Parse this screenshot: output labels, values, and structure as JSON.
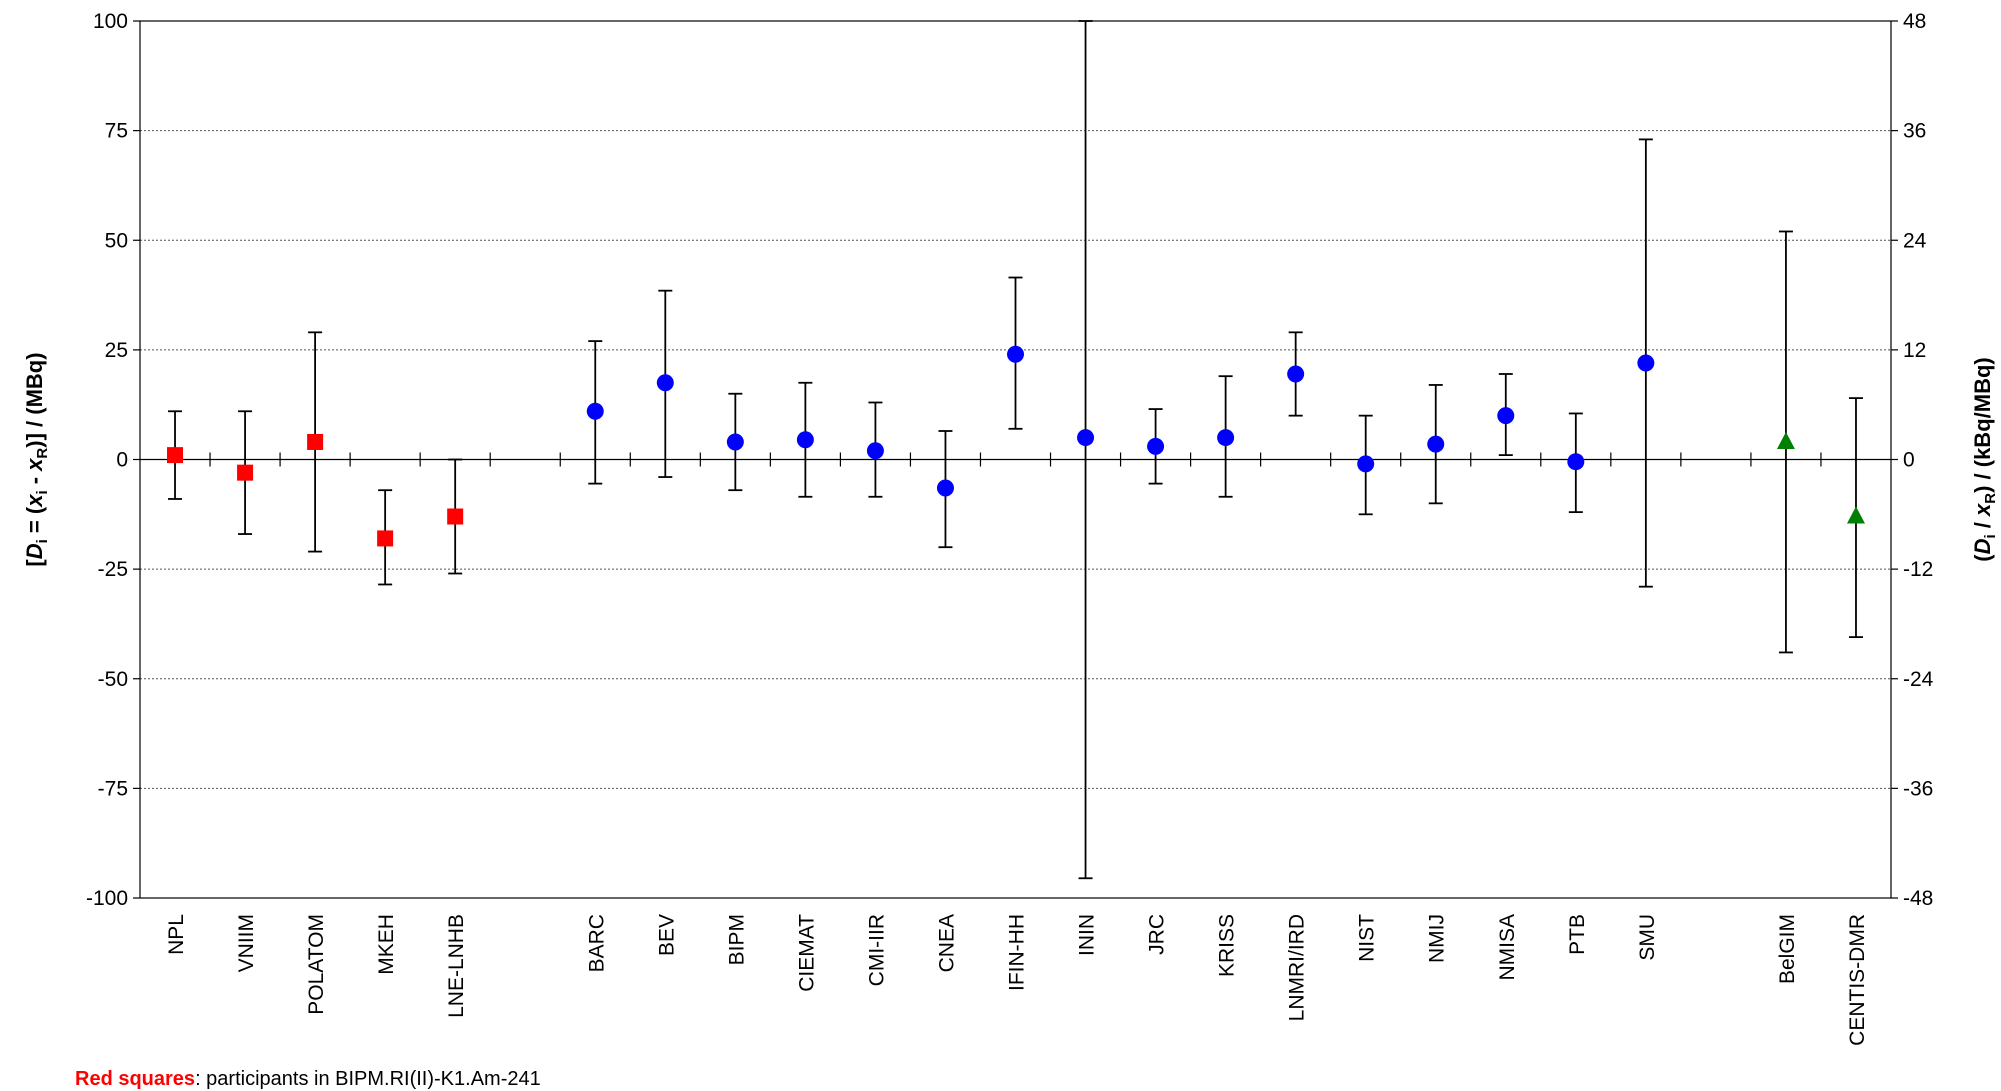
{
  "chart_data": {
    "type": "scatter",
    "title": "",
    "y_left": {
      "ylim": [
        -100,
        100
      ],
      "ticks": [
        "100",
        "75",
        "50",
        "25",
        "0",
        "-25",
        "-50",
        "-75",
        "-100"
      ],
      "label_parts": [
        "[",
        "D",
        "i",
        " = (",
        "x",
        "i",
        " - ",
        "x",
        "R",
        ")] / (MBq)"
      ]
    },
    "y_right": {
      "ylim": [
        -48,
        48
      ],
      "ticks": [
        "48",
        "36",
        "24",
        "12",
        "0",
        "-12",
        "-24",
        "-36",
        "-48"
      ],
      "label_parts": [
        "(",
        "D",
        "i",
        " / ",
        "x",
        "R",
        ") / (kBq/MBq)"
      ]
    },
    "grid": true,
    "categories": [
      "NPL",
      "VNIIM",
      "POLATOM",
      "MKEH",
      "LNE-LNHB",
      "",
      "BARC",
      "BEV",
      "BIPM",
      "CIEMAT",
      "CMI-IIR",
      "CNEA",
      "IFIN-HH",
      "ININ",
      "JRC",
      "KRISS",
      "LNMRI/IRD",
      "NIST",
      "NMIJ",
      "NMISA",
      "PTB",
      "SMU",
      "",
      "BelGIM",
      "CENTIS-DMR"
    ],
    "series": [
      {
        "marker": "square",
        "color": "#ff0000",
        "points": [
          {
            "category": "NPL",
            "y": 1,
            "low": -9,
            "high": 11
          },
          {
            "category": "VNIIM",
            "y": -3,
            "low": -17,
            "high": 11
          },
          {
            "category": "POLATOM",
            "y": 4,
            "low": -21,
            "high": 29
          },
          {
            "category": "MKEH",
            "y": -18,
            "low": -28.5,
            "high": -7
          },
          {
            "category": "LNE-LNHB",
            "y": -13,
            "low": -26,
            "high": 0
          }
        ]
      },
      {
        "marker": "circle",
        "color": "#0000ff",
        "points": [
          {
            "category": "BARC",
            "y": 11,
            "low": -5.5,
            "high": 27
          },
          {
            "category": "BEV",
            "y": 17.5,
            "low": -4,
            "high": 38.5
          },
          {
            "category": "BIPM",
            "y": 4,
            "low": -7,
            "high": 15
          },
          {
            "category": "CIEMAT",
            "y": 4.5,
            "low": -8.5,
            "high": 17.5
          },
          {
            "category": "CMI-IIR",
            "y": 2,
            "low": -8.5,
            "high": 13
          },
          {
            "category": "CNEA",
            "y": -6.5,
            "low": -20,
            "high": 6.5
          },
          {
            "category": "IFIN-HH",
            "y": 24,
            "low": 7,
            "high": 41.5
          },
          {
            "category": "ININ",
            "y": 5,
            "low": -95.5,
            "high": 100
          },
          {
            "category": "JRC",
            "y": 3,
            "low": -5.5,
            "high": 11.5
          },
          {
            "category": "KRISS",
            "y": 5,
            "low": -8.5,
            "high": 19
          },
          {
            "category": "LNMRI/IRD",
            "y": 19.5,
            "low": 10,
            "high": 29
          },
          {
            "category": "NIST",
            "y": -1,
            "low": -12.5,
            "high": 10
          },
          {
            "category": "NMIJ",
            "y": 3.5,
            "low": -10,
            "high": 17
          },
          {
            "category": "NMISA",
            "y": 10,
            "low": 1,
            "high": 19.5
          },
          {
            "category": "PTB",
            "y": -0.5,
            "low": -12,
            "high": 10.5
          },
          {
            "category": "SMU",
            "y": 22,
            "low": -29,
            "high": 73
          }
        ]
      },
      {
        "marker": "triangle",
        "color": "#008000",
        "points": [
          {
            "category": "BelGIM",
            "y": 4,
            "low": -44,
            "high": 52
          },
          {
            "category": "CENTIS-DMR",
            "y": -13,
            "low": -40.5,
            "high": 14
          }
        ]
      }
    ]
  },
  "footnote": {
    "highlight": "Red squares",
    "rest": ": participants in BIPM.RI(II)-K1.Am-241"
  }
}
